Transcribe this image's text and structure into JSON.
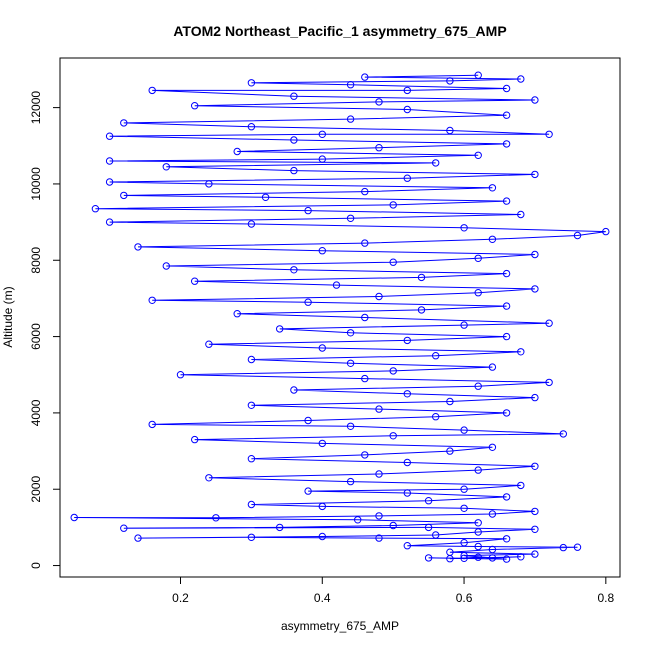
{
  "chart_data": {
    "type": "scatter",
    "title": "ATOM2 Northeast_Pacific_1 asymmetry_675_AMP",
    "xlabel": "asymmetry_675_AMP",
    "ylabel": "Altitude (m)",
    "xlim": [
      0.03,
      0.82
    ],
    "ylim": [
      -300,
      13300
    ],
    "x_ticks": [
      0.2,
      0.4,
      0.6,
      0.8
    ],
    "x_tick_labels": [
      "0.2",
      "0.4",
      "0.6",
      "0.8"
    ],
    "y_ticks": [
      0,
      2000,
      4000,
      6000,
      8000,
      10000,
      12000
    ],
    "y_tick_labels": [
      "0",
      "2000",
      "4000",
      "6000",
      "8000",
      "10000",
      "12000"
    ],
    "grid": false,
    "markers": "open circles joined by lines",
    "series": [
      {
        "color": "#0000ff",
        "points": [
          [
            0.58,
            180
          ],
          [
            0.62,
            220
          ],
          [
            0.66,
            170
          ],
          [
            0.55,
            200
          ],
          [
            0.6,
            190
          ],
          [
            0.68,
            230
          ],
          [
            0.64,
            200
          ],
          [
            0.6,
            260
          ],
          [
            0.7,
            300
          ],
          [
            0.58,
            350
          ],
          [
            0.64,
            420
          ],
          [
            0.74,
            470
          ],
          [
            0.76,
            480
          ],
          [
            0.62,
            500
          ],
          [
            0.52,
            520
          ],
          [
            0.6,
            600
          ],
          [
            0.66,
            700
          ],
          [
            0.48,
            720
          ],
          [
            0.3,
            740
          ],
          [
            0.14,
            720
          ],
          [
            0.4,
            760
          ],
          [
            0.56,
            800
          ],
          [
            0.62,
            880
          ],
          [
            0.7,
            950
          ],
          [
            0.55,
            1000
          ],
          [
            0.12,
            980
          ],
          [
            0.34,
            1000
          ],
          [
            0.5,
            1050
          ],
          [
            0.62,
            1120
          ],
          [
            0.45,
            1200
          ],
          [
            0.05,
            1260
          ],
          [
            0.25,
            1250
          ],
          [
            0.48,
            1300
          ],
          [
            0.64,
            1350
          ],
          [
            0.7,
            1420
          ],
          [
            0.6,
            1500
          ],
          [
            0.4,
            1550
          ],
          [
            0.3,
            1600
          ],
          [
            0.55,
            1700
          ],
          [
            0.66,
            1800
          ],
          [
            0.52,
            1900
          ],
          [
            0.38,
            1950
          ],
          [
            0.6,
            2000
          ],
          [
            0.68,
            2100
          ],
          [
            0.44,
            2200
          ],
          [
            0.24,
            2300
          ],
          [
            0.48,
            2400
          ],
          [
            0.62,
            2500
          ],
          [
            0.7,
            2600
          ],
          [
            0.52,
            2700
          ],
          [
            0.3,
            2800
          ],
          [
            0.46,
            2900
          ],
          [
            0.58,
            3000
          ],
          [
            0.64,
            3100
          ],
          [
            0.4,
            3200
          ],
          [
            0.22,
            3300
          ],
          [
            0.5,
            3400
          ],
          [
            0.74,
            3450
          ],
          [
            0.6,
            3550
          ],
          [
            0.44,
            3650
          ],
          [
            0.16,
            3700
          ],
          [
            0.38,
            3800
          ],
          [
            0.56,
            3900
          ],
          [
            0.66,
            4000
          ],
          [
            0.48,
            4100
          ],
          [
            0.3,
            4200
          ],
          [
            0.58,
            4300
          ],
          [
            0.7,
            4400
          ],
          [
            0.52,
            4500
          ],
          [
            0.36,
            4600
          ],
          [
            0.62,
            4700
          ],
          [
            0.72,
            4800
          ],
          [
            0.46,
            4900
          ],
          [
            0.2,
            5000
          ],
          [
            0.5,
            5100
          ],
          [
            0.64,
            5200
          ],
          [
            0.44,
            5300
          ],
          [
            0.3,
            5400
          ],
          [
            0.56,
            5500
          ],
          [
            0.68,
            5600
          ],
          [
            0.4,
            5700
          ],
          [
            0.24,
            5800
          ],
          [
            0.52,
            5900
          ],
          [
            0.66,
            6000
          ],
          [
            0.44,
            6100
          ],
          [
            0.34,
            6200
          ],
          [
            0.6,
            6300
          ],
          [
            0.72,
            6350
          ],
          [
            0.46,
            6500
          ],
          [
            0.28,
            6600
          ],
          [
            0.54,
            6700
          ],
          [
            0.66,
            6800
          ],
          [
            0.38,
            6900
          ],
          [
            0.16,
            6950
          ],
          [
            0.48,
            7050
          ],
          [
            0.62,
            7150
          ],
          [
            0.7,
            7250
          ],
          [
            0.42,
            7350
          ],
          [
            0.22,
            7450
          ],
          [
            0.54,
            7550
          ],
          [
            0.66,
            7650
          ],
          [
            0.36,
            7750
          ],
          [
            0.18,
            7850
          ],
          [
            0.5,
            7950
          ],
          [
            0.62,
            8050
          ],
          [
            0.7,
            8150
          ],
          [
            0.4,
            8250
          ],
          [
            0.14,
            8350
          ],
          [
            0.46,
            8450
          ],
          [
            0.64,
            8550
          ],
          [
            0.76,
            8650
          ],
          [
            0.8,
            8750
          ],
          [
            0.6,
            8850
          ],
          [
            0.3,
            8950
          ],
          [
            0.1,
            9000
          ],
          [
            0.44,
            9100
          ],
          [
            0.68,
            9200
          ],
          [
            0.38,
            9300
          ],
          [
            0.08,
            9350
          ],
          [
            0.5,
            9450
          ],
          [
            0.66,
            9550
          ],
          [
            0.32,
            9650
          ],
          [
            0.12,
            9700
          ],
          [
            0.46,
            9800
          ],
          [
            0.64,
            9900
          ],
          [
            0.24,
            10000
          ],
          [
            0.1,
            10050
          ],
          [
            0.52,
            10150
          ],
          [
            0.7,
            10250
          ],
          [
            0.36,
            10350
          ],
          [
            0.18,
            10450
          ],
          [
            0.56,
            10550
          ],
          [
            0.1,
            10600
          ],
          [
            0.4,
            10650
          ],
          [
            0.62,
            10750
          ],
          [
            0.28,
            10850
          ],
          [
            0.48,
            10950
          ],
          [
            0.66,
            11050
          ],
          [
            0.36,
            11150
          ],
          [
            0.1,
            11250
          ],
          [
            0.4,
            11300
          ],
          [
            0.72,
            11300
          ],
          [
            0.58,
            11400
          ],
          [
            0.3,
            11500
          ],
          [
            0.12,
            11600
          ],
          [
            0.44,
            11700
          ],
          [
            0.66,
            11800
          ],
          [
            0.52,
            11950
          ],
          [
            0.22,
            12050
          ],
          [
            0.48,
            12150
          ],
          [
            0.7,
            12200
          ],
          [
            0.36,
            12300
          ],
          [
            0.16,
            12450
          ],
          [
            0.52,
            12450
          ],
          [
            0.66,
            12500
          ],
          [
            0.44,
            12600
          ],
          [
            0.3,
            12650
          ],
          [
            0.58,
            12700
          ],
          [
            0.68,
            12750
          ],
          [
            0.46,
            12800
          ],
          [
            0.62,
            12850
          ]
        ]
      }
    ]
  }
}
